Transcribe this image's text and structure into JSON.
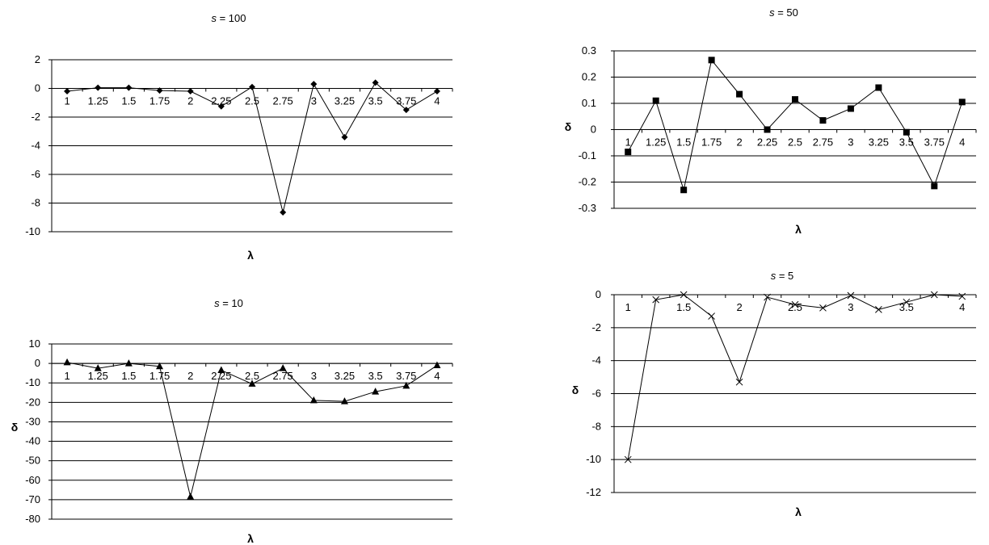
{
  "chart_data": [
    {
      "type": "line",
      "title_prefix": "s",
      "title_suffix": " = 100",
      "xlabel": "λ",
      "ylabel": "",
      "categories": [
        "1",
        "1.25",
        "1.5",
        "1.75",
        "2",
        "2.25",
        "2.5",
        "2.75",
        "3",
        "3.25",
        "3.5",
        "3.75",
        "4"
      ],
      "values": [
        -0.2,
        0.05,
        0.05,
        -0.15,
        -0.2,
        -1.25,
        0.1,
        -8.65,
        0.3,
        -3.4,
        0.4,
        -1.5,
        -0.2
      ],
      "ylim": [
        -10,
        2
      ],
      "yticks": [
        -10,
        -8,
        -6,
        -4,
        -2,
        0,
        2
      ],
      "ytick_labels": [
        "-10",
        "-8",
        "-6",
        "-4",
        "-2",
        "0",
        "2"
      ],
      "marker": "diamond",
      "grid": true
    },
    {
      "type": "line",
      "title_prefix": "s",
      "title_suffix": " = 50",
      "xlabel": "λ",
      "ylabel": "δ",
      "categories": [
        "1",
        "1.25",
        "1.5",
        "1.75",
        "2",
        "2.25",
        "2.5",
        "2.75",
        "3",
        "3.25",
        "3.5",
        "3.75",
        "4"
      ],
      "values": [
        -0.085,
        0.11,
        -0.23,
        0.265,
        0.135,
        0.0,
        0.115,
        0.035,
        0.08,
        0.16,
        -0.01,
        -0.215,
        0.105
      ],
      "ylim": [
        -0.3,
        0.3
      ],
      "yticks": [
        -0.3,
        -0.2,
        -0.1,
        0,
        0.1,
        0.2,
        0.3
      ],
      "ytick_labels": [
        "-0.3",
        "-0.2",
        "-0.1",
        "0",
        "0.1",
        "0.2",
        "0.3"
      ],
      "marker": "square",
      "grid": true
    },
    {
      "type": "line",
      "title_prefix": "s",
      "title_suffix": " = 10",
      "xlabel": "λ",
      "ylabel": "δ",
      "categories": [
        "1",
        "1.25",
        "1.5",
        "1.75",
        "2",
        "2.25",
        "2.5",
        "2.75",
        "3",
        "3.25",
        "3.5",
        "3.75",
        "4"
      ],
      "values": [
        0.5,
        -2.5,
        0,
        -1.5,
        -68.5,
        -3.5,
        -10.5,
        -2.5,
        -19,
        -19.5,
        -14.5,
        -11.5,
        -1.0
      ],
      "ylim": [
        -80,
        10
      ],
      "yticks": [
        -80,
        -70,
        -60,
        -50,
        -40,
        -30,
        -20,
        -10,
        0,
        10
      ],
      "ytick_labels": [
        "-80",
        "-70",
        "-60",
        "-50",
        "-40",
        "-30",
        "-20",
        "-10",
        "0",
        "10"
      ],
      "marker": "triangle",
      "grid": true
    },
    {
      "type": "line",
      "title_prefix": "s",
      "title_suffix": " = 5",
      "xlabel": "λ",
      "ylabel": "δ",
      "categories": [
        "1",
        "1.25",
        "1.5",
        "1.75",
        "2",
        "2.25",
        "2.5",
        "2.75",
        "3",
        "3.25",
        "3.5",
        "3.75",
        "4"
      ],
      "category_labels": [
        "1",
        "",
        "1.5",
        "",
        "2",
        "",
        "2.5",
        "",
        "3",
        "",
        "3.5",
        "",
        "4"
      ],
      "values": [
        -10,
        -0.3,
        0,
        -1.3,
        -5.3,
        -0.15,
        -0.6,
        -0.8,
        -0.05,
        -0.9,
        -0.45,
        0,
        -0.1
      ],
      "ylim": [
        -12,
        0
      ],
      "yticks": [
        -12,
        -10,
        -8,
        -6,
        -4,
        -2,
        0
      ],
      "ytick_labels": [
        "-12",
        "-10",
        "-8",
        "-6",
        "-4",
        "-2",
        "0"
      ],
      "marker": "x",
      "grid": true
    }
  ]
}
